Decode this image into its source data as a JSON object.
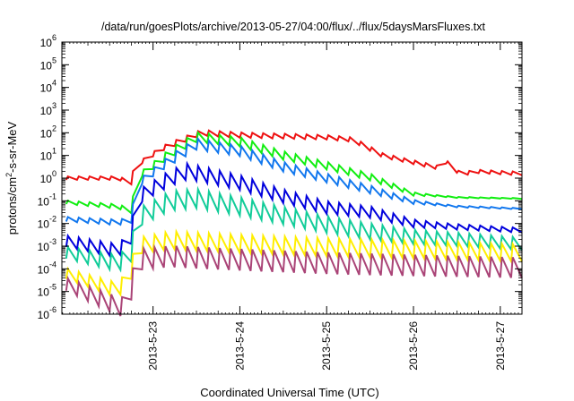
{
  "chart_data": {
    "type": "line",
    "title": "/data/run/goesPlots/archive/2013-05-27/04:00/flux/../flux/5daysMarsFluxes.txt",
    "xlabel": "Coordinated Universal Time (UTC)",
    "ylabel_prefix": "protons/cm",
    "ylabel_sup": "2",
    "ylabel_suffix": "-s-sr-MeV",
    "y_scale": "log",
    "ylim_exp": [
      -6,
      6
    ],
    "ytick_labels": [
      {
        "base": "10",
        "exp": "-6"
      },
      {
        "base": "10",
        "exp": "-5"
      },
      {
        "base": "10",
        "exp": "-4"
      },
      {
        "base": "10",
        "exp": "-3"
      },
      {
        "base": "10",
        "exp": "-2"
      },
      {
        "base": "10",
        "exp": "-1"
      },
      {
        "base": "10",
        "exp": "0"
      },
      {
        "base": "10",
        "exp": "1"
      },
      {
        "base": "10",
        "exp": "2"
      },
      {
        "base": "10",
        "exp": "3"
      },
      {
        "base": "10",
        "exp": "4"
      },
      {
        "base": "10",
        "exp": "5"
      },
      {
        "base": "10",
        "exp": "6"
      }
    ],
    "xlim_days": [
      21.95,
      27.25
    ],
    "xticks": [
      {
        "value": 23,
        "label": "2013-5-23"
      },
      {
        "value": 24,
        "label": "2013-5-24"
      },
      {
        "value": 25,
        "label": "2013-5-25"
      },
      {
        "value": 26,
        "label": "2013-5-26"
      },
      {
        "value": 27,
        "label": "2013-5-27"
      }
    ],
    "grid": false,
    "legend": "none",
    "sawtooth_period_days": 0.125,
    "series": [
      {
        "color": "#ee1111",
        "trend": [
          [
            21.95,
            0.0
          ],
          [
            22.6,
            0.0
          ],
          [
            22.75,
            -0.2
          ],
          [
            22.78,
            0.5
          ],
          [
            23.1,
            1.3
          ],
          [
            23.55,
            2.0
          ],
          [
            24.0,
            1.9
          ],
          [
            24.5,
            1.85
          ],
          [
            25.0,
            1.8
          ],
          [
            25.3,
            1.7
          ],
          [
            25.65,
            1.0
          ],
          [
            26.0,
            0.7
          ],
          [
            26.3,
            0.45
          ],
          [
            26.32,
            0.9
          ],
          [
            26.55,
            0.15
          ],
          [
            26.7,
            0.3
          ],
          [
            27.25,
            0.2
          ]
        ],
        "amp": [
          [
            21.95,
            0.15
          ],
          [
            22.78,
            0.15
          ],
          [
            23.3,
            0.25
          ],
          [
            26.6,
            0.15
          ],
          [
            27.25,
            0.15
          ]
        ]
      },
      {
        "color": "#11ee11",
        "trend": [
          [
            21.95,
            -1.05
          ],
          [
            22.6,
            -1.25
          ],
          [
            22.75,
            -1.45
          ],
          [
            22.8,
            0.0
          ],
          [
            23.2,
            1.1
          ],
          [
            23.5,
            1.8
          ],
          [
            24.0,
            1.6
          ],
          [
            24.5,
            1.0
          ],
          [
            25.0,
            0.55
          ],
          [
            25.5,
            0.05
          ],
          [
            26.0,
            -0.7
          ],
          [
            26.5,
            -0.85
          ],
          [
            27.25,
            -0.9
          ]
        ],
        "amp": [
          [
            21.95,
            0.15
          ],
          [
            22.78,
            0.2
          ],
          [
            23.3,
            0.45
          ],
          [
            25.5,
            0.3
          ],
          [
            26.3,
            0.05
          ],
          [
            27.25,
            0.03
          ]
        ]
      },
      {
        "color": "#1177ee",
        "trend": [
          [
            21.95,
            -1.8
          ],
          [
            22.6,
            -1.95
          ],
          [
            22.75,
            -1.85
          ],
          [
            22.8,
            -0.3
          ],
          [
            23.2,
            0.8
          ],
          [
            23.5,
            1.5
          ],
          [
            24.0,
            1.2
          ],
          [
            24.5,
            0.5
          ],
          [
            25.0,
            0.0
          ],
          [
            25.5,
            -0.5
          ],
          [
            26.0,
            -1.05
          ],
          [
            26.5,
            -1.25
          ],
          [
            27.25,
            -1.35
          ]
        ],
        "amp": [
          [
            21.95,
            0.2
          ],
          [
            22.78,
            0.25
          ],
          [
            23.3,
            0.5
          ],
          [
            25.5,
            0.35
          ],
          [
            26.3,
            0.08
          ],
          [
            27.25,
            0.05
          ]
        ]
      },
      {
        "color": "#0000dd",
        "trend": [
          [
            21.95,
            -2.75
          ],
          [
            22.6,
            -3.2
          ],
          [
            22.75,
            -2.6
          ],
          [
            22.8,
            -0.9
          ],
          [
            23.2,
            0.0
          ],
          [
            23.4,
            0.3
          ],
          [
            24.0,
            -0.2
          ],
          [
            24.5,
            -0.8
          ],
          [
            25.0,
            -1.3
          ],
          [
            25.5,
            -1.5
          ],
          [
            26.0,
            -2.0
          ],
          [
            26.5,
            -2.15
          ],
          [
            27.25,
            -2.3
          ]
        ],
        "amp": [
          [
            21.95,
            0.5
          ],
          [
            22.78,
            0.6
          ],
          [
            23.3,
            0.7
          ],
          [
            25.5,
            0.5
          ],
          [
            26.3,
            0.25
          ],
          [
            27.25,
            0.2
          ]
        ]
      },
      {
        "color": "#11cc99",
        "trend": [
          [
            21.95,
            -3.25
          ],
          [
            22.6,
            -3.75
          ],
          [
            22.75,
            -3.3
          ],
          [
            22.8,
            -1.8
          ],
          [
            23.2,
            -1.0
          ],
          [
            23.5,
            -0.9
          ],
          [
            24.0,
            -1.25
          ],
          [
            24.5,
            -1.65
          ],
          [
            25.0,
            -2.05
          ],
          [
            25.5,
            -2.35
          ],
          [
            26.0,
            -2.6
          ],
          [
            26.5,
            -2.7
          ],
          [
            27.25,
            -2.9
          ]
        ],
        "amp": [
          [
            21.95,
            0.5
          ],
          [
            22.78,
            0.8
          ],
          [
            23.3,
            0.85
          ],
          [
            25.5,
            0.7
          ],
          [
            26.3,
            0.6
          ],
          [
            27.25,
            0.55
          ]
        ]
      },
      {
        "color": "#ffee00",
        "trend": [
          [
            21.95,
            -4.15
          ],
          [
            22.6,
            -4.95
          ],
          [
            22.75,
            -4.1
          ],
          [
            22.8,
            -3.0
          ],
          [
            23.2,
            -2.75
          ],
          [
            24.0,
            -2.9
          ],
          [
            25.0,
            -3.05
          ],
          [
            26.0,
            -3.15
          ],
          [
            27.25,
            -3.3
          ]
        ],
        "amp": [
          [
            21.95,
            0.45
          ],
          [
            22.78,
            0.7
          ],
          [
            23.3,
            0.8
          ],
          [
            25.5,
            0.8
          ],
          [
            27.25,
            0.75
          ]
        ]
      },
      {
        "color": "#aa4477",
        "trend": [
          [
            21.95,
            -4.6
          ],
          [
            22.6,
            -5.65
          ],
          [
            22.72,
            -5.7
          ],
          [
            22.8,
            -3.6
          ],
          [
            23.2,
            -3.45
          ],
          [
            24.0,
            -3.6
          ],
          [
            25.0,
            -3.75
          ],
          [
            26.0,
            -3.85
          ],
          [
            27.25,
            -3.95
          ]
        ],
        "amp": [
          [
            21.95,
            0.55
          ],
          [
            22.78,
            0.9
          ],
          [
            23.3,
            0.95
          ],
          [
            25.5,
            0.95
          ],
          [
            27.25,
            0.9
          ]
        ]
      }
    ]
  }
}
